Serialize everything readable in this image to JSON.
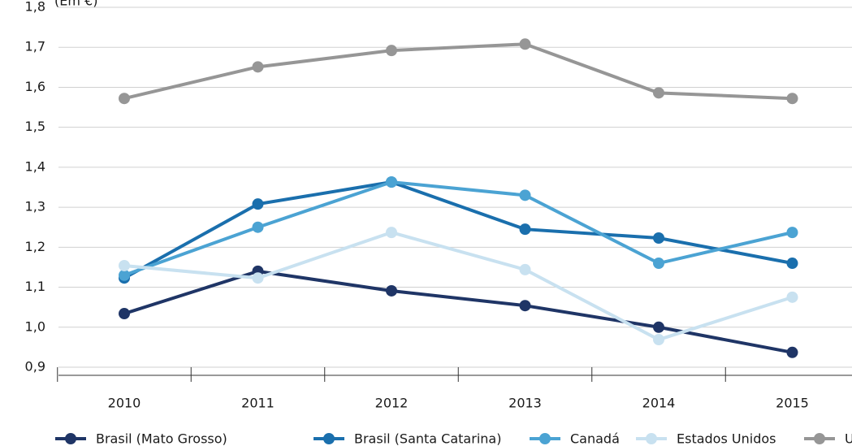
{
  "chart_data": {
    "type": "line",
    "y_label": "(Em €)",
    "categories": [
      "2010",
      "2011",
      "2012",
      "2013",
      "2014",
      "2015"
    ],
    "series": [
      {
        "name": "Brasil (Mato Grosso)",
        "color": "#1f3566",
        "values": [
          1.034,
          1.14,
          1.091,
          1.054,
          1.0,
          0.937
        ]
      },
      {
        "name": "Brasil (Santa Catarina)",
        "color": "#1a6fad",
        "values": [
          1.123,
          1.308,
          1.363,
          1.245,
          1.223,
          1.16
        ]
      },
      {
        "name": "Canadá",
        "color": "#4ba3d3",
        "values": [
          1.13,
          1.25,
          1.363,
          1.33,
          1.16,
          1.237
        ]
      },
      {
        "name": "Estados Unidos",
        "color": "#c8e1f0",
        "values": [
          1.154,
          1.123,
          1.237,
          1.144,
          0.969,
          1.075
        ]
      },
      {
        "name": "UE",
        "color": "#969696",
        "values": [
          1.572,
          1.651,
          1.692,
          1.708,
          1.586,
          1.572
        ]
      }
    ],
    "ylim": [
      0.9,
      1.8
    ],
    "yticks": [
      {
        "value": 0.9,
        "label": "0,9"
      },
      {
        "value": 1.0,
        "label": "1,0"
      },
      {
        "value": 1.1,
        "label": "1,1"
      },
      {
        "value": 1.2,
        "label": "1,2"
      },
      {
        "value": 1.3,
        "label": "1,3"
      },
      {
        "value": 1.4,
        "label": "1,4"
      },
      {
        "value": 1.5,
        "label": "1,5"
      },
      {
        "value": 1.6,
        "label": "1,6"
      },
      {
        "value": 1.7,
        "label": "1,7"
      },
      {
        "value": 1.8,
        "label": "1,8"
      }
    ],
    "grid": true
  }
}
